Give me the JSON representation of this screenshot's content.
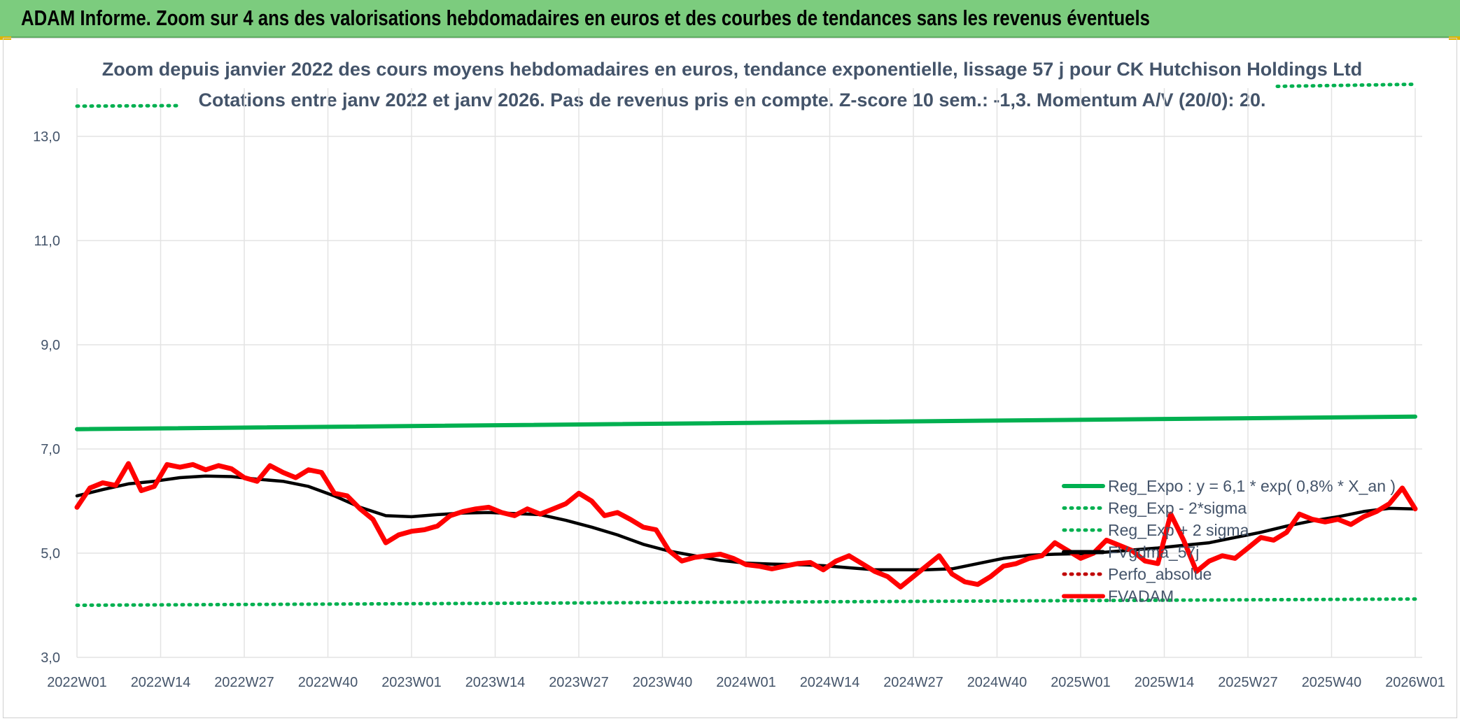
{
  "banner": {
    "title": "ADAM Informe. Zoom sur 4 ans des valorisations hebdomadaires en euros et des courbes de tendances sans les revenus éventuels"
  },
  "colors": {
    "banner_bg": "#7ccc7e",
    "reg_expo": "#00b050",
    "fvadam": "#ff0000",
    "fvgdma": "#000000",
    "perfo": "#c00000",
    "grid": "#e3e3e3",
    "text": "#44546a"
  },
  "chart_data": {
    "type": "line",
    "title": "Zoom depuis janvier 2022 des cours moyens hebdomadaires en euros, tendance exponentielle, lissage 57 j pour CK Hutchison Holdings Ltd",
    "subtitle": "Cotations entre janv 2022 et janv 2026. Pas de revenus pris en compte. Z-score 10 sem.: -1,3. Momentum A/V (20/0): 20.",
    "xlabel": "",
    "ylabel": "",
    "ylim": [
      3.0,
      13.0
    ],
    "yticks": [
      "3,0",
      "5,0",
      "7,0",
      "9,0",
      "11,0",
      "13,0"
    ],
    "ytick_values": [
      3,
      5,
      7,
      9,
      11,
      13
    ],
    "xticks": [
      "2022W01",
      "2022W14",
      "2022W27",
      "2022W40",
      "2023W01",
      "2023W14",
      "2023W27",
      "2023W40",
      "2024W01",
      "2024W14",
      "2024W27",
      "2024W40",
      "2025W01",
      "2025W14",
      "2025W27",
      "2025W40",
      "2026W01"
    ],
    "grid": true,
    "legend_position": "right",
    "series": [
      {
        "name": "Reg_Expo : y = 6,1 * exp( 0,8% *  X_an )",
        "color": "#00b050",
        "style": "solid",
        "x": [
          0,
          208
        ],
        "values": [
          7.38,
          7.62
        ]
      },
      {
        "name": "Reg_Exp - 2*sigma",
        "color": "#00b050",
        "style": "dotted",
        "x": [
          0,
          208
        ],
        "values": [
          4.0,
          4.12
        ]
      },
      {
        "name": "Reg_Exp + 2 sigma",
        "color": "#00b050",
        "style": "dotted",
        "note_clipped": true,
        "x": [
          0,
          208
        ],
        "values": [
          13.58,
          14.0
        ]
      },
      {
        "name": "FVgdma_57j",
        "color": "#000000",
        "style": "solid",
        "x": [
          0,
          4,
          8,
          12,
          16,
          20,
          24,
          28,
          32,
          36,
          40,
          44,
          48,
          52,
          56,
          60,
          64,
          68,
          72,
          76,
          80,
          84,
          88,
          92,
          96,
          100,
          104,
          108,
          112,
          116,
          120,
          124,
          128,
          132,
          136,
          140,
          144,
          148,
          152,
          156,
          160,
          164,
          168,
          172,
          176,
          180,
          184,
          188,
          192,
          196,
          200,
          204,
          208
        ],
        "values": [
          6.1,
          6.22,
          6.33,
          6.38,
          6.45,
          6.48,
          6.47,
          6.42,
          6.38,
          6.28,
          6.1,
          5.88,
          5.72,
          5.7,
          5.74,
          5.77,
          5.78,
          5.76,
          5.74,
          5.63,
          5.5,
          5.35,
          5.17,
          5.04,
          4.95,
          4.86,
          4.81,
          4.79,
          4.78,
          4.76,
          4.72,
          4.68,
          4.68,
          4.68,
          4.7,
          4.8,
          4.9,
          4.96,
          4.98,
          4.99,
          5.02,
          5.06,
          5.1,
          5.15,
          5.2,
          5.3,
          5.4,
          5.52,
          5.62,
          5.7,
          5.8,
          5.86,
          5.85
        ]
      },
      {
        "name": "Perfo_absolue",
        "color": "#c00000",
        "style": "dotted",
        "x": [],
        "values": []
      },
      {
        "name": "FVADAM",
        "color": "#ff0000",
        "style": "solid",
        "x": [
          0,
          2,
          4,
          6,
          8,
          10,
          12,
          14,
          16,
          18,
          20,
          22,
          24,
          26,
          28,
          30,
          32,
          34,
          36,
          38,
          40,
          42,
          44,
          46,
          48,
          50,
          52,
          54,
          56,
          58,
          60,
          62,
          64,
          66,
          68,
          70,
          72,
          74,
          76,
          78,
          80,
          82,
          84,
          86,
          88,
          90,
          92,
          94,
          96,
          98,
          100,
          102,
          104,
          106,
          108,
          110,
          112,
          114,
          116,
          118,
          120,
          122,
          124,
          126,
          128,
          130,
          132,
          134,
          136,
          138,
          140,
          142,
          144,
          146,
          148,
          150,
          152,
          154,
          156,
          158,
          160,
          162,
          164,
          166,
          168,
          170,
          172,
          174,
          176,
          178,
          180,
          182,
          184,
          186,
          188,
          190,
          192,
          194,
          196,
          198,
          200,
          202,
          204,
          206,
          208
        ],
        "values": [
          5.88,
          6.25,
          6.35,
          6.3,
          6.72,
          6.2,
          6.28,
          6.7,
          6.65,
          6.7,
          6.6,
          6.68,
          6.62,
          6.45,
          6.38,
          6.68,
          6.55,
          6.45,
          6.6,
          6.55,
          6.15,
          6.1,
          5.85,
          5.65,
          5.2,
          5.35,
          5.42,
          5.45,
          5.52,
          5.72,
          5.8,
          5.85,
          5.88,
          5.78,
          5.72,
          5.85,
          5.75,
          5.85,
          5.95,
          6.15,
          6.0,
          5.72,
          5.78,
          5.65,
          5.5,
          5.45,
          5.05,
          4.85,
          4.92,
          4.95,
          4.98,
          4.9,
          4.78,
          4.75,
          4.7,
          4.75,
          4.8,
          4.82,
          4.68,
          4.85,
          4.95,
          4.8,
          4.65,
          4.55,
          4.35,
          4.55,
          4.75,
          4.95,
          4.6,
          4.45,
          4.4,
          4.55,
          4.75,
          4.8,
          4.9,
          4.95,
          5.2,
          5.05,
          4.9,
          5.0,
          5.25,
          5.15,
          5.05,
          4.85,
          4.8,
          5.75,
          5.25,
          4.65,
          4.85,
          4.95,
          4.9,
          5.1,
          5.3,
          5.25,
          5.4,
          5.75,
          5.65,
          5.6,
          5.65,
          5.55,
          5.7,
          5.8,
          5.95,
          6.25,
          5.85
        ]
      }
    ]
  }
}
